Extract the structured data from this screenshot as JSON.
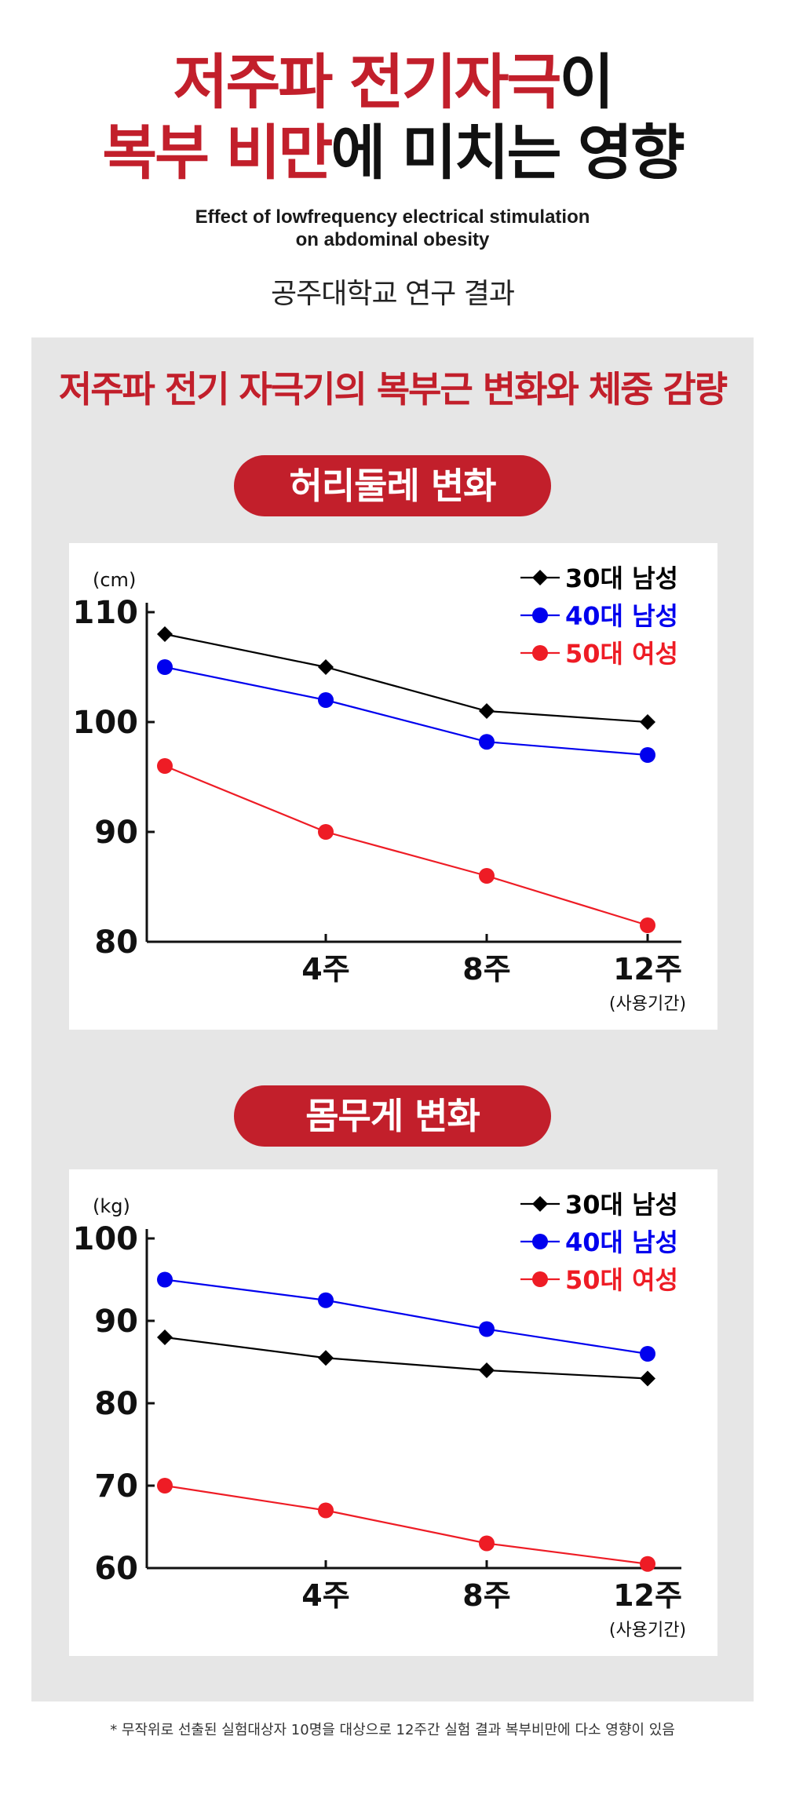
{
  "header": {
    "title_line1_red": "저주파 전기자극",
    "title_line1_black": "이",
    "title_line2_red": "복부 비만",
    "title_line2_black": "에 미치는 영향",
    "subtitle_en_line1": "Effect of lowfrequency electrical stimulation",
    "subtitle_en_line2": "on abdominal obesity",
    "university": "공주대학교 연구 결과"
  },
  "panel": {
    "heading": "저주파 전기 자극기의 복부근 변화와 체중 감량",
    "waist_label": "허리둘레 변화",
    "weight_label": "몸무게 변화"
  },
  "footnote": "* 무작위로 선출된 실험대상자 10명을 대상으로 12주간 실험 결과 복부비만에 다소 영향이 있음",
  "colors": {
    "accent_red": "#c21f2b",
    "series_black": "#000000",
    "series_blue": "#0000ee",
    "series_red": "#ee1c25"
  },
  "chart_data": [
    {
      "type": "line",
      "title": "허리둘레 변화",
      "unit": "(cm)",
      "x_ticks": [
        "",
        "4주",
        "8주",
        "12주"
      ],
      "x_note": "(사용기간)",
      "ylim": [
        80,
        110
      ],
      "yticks": [
        80,
        90,
        100,
        110
      ],
      "legend_position": "top-right",
      "series": [
        {
          "name": "30대 남성",
          "marker": "diamond",
          "color": "#000000",
          "values": [
            108,
            105,
            101,
            100
          ]
        },
        {
          "name": "40대 남성",
          "marker": "circle",
          "color": "#0000ee",
          "values": [
            105,
            102,
            98.2,
            97
          ]
        },
        {
          "name": "50대 여성",
          "marker": "circle",
          "color": "#ee1c25",
          "values": [
            96,
            90,
            86,
            81.5
          ]
        }
      ]
    },
    {
      "type": "line",
      "title": "몸무게 변화",
      "unit": "(kg)",
      "x_ticks": [
        "",
        "4주",
        "8주",
        "12주"
      ],
      "x_note": "(사용기간)",
      "ylim": [
        60,
        100
      ],
      "yticks": [
        60,
        70,
        80,
        90,
        100
      ],
      "legend_position": "top-right",
      "series": [
        {
          "name": "30대 남성",
          "marker": "diamond",
          "color": "#000000",
          "values": [
            88,
            85.5,
            84,
            83
          ]
        },
        {
          "name": "40대 남성",
          "marker": "circle",
          "color": "#0000ee",
          "values": [
            95,
            92.5,
            89,
            86
          ]
        },
        {
          "name": "50대 여성",
          "marker": "circle",
          "color": "#ee1c25",
          "values": [
            70,
            67,
            63,
            60.5
          ]
        }
      ]
    }
  ]
}
